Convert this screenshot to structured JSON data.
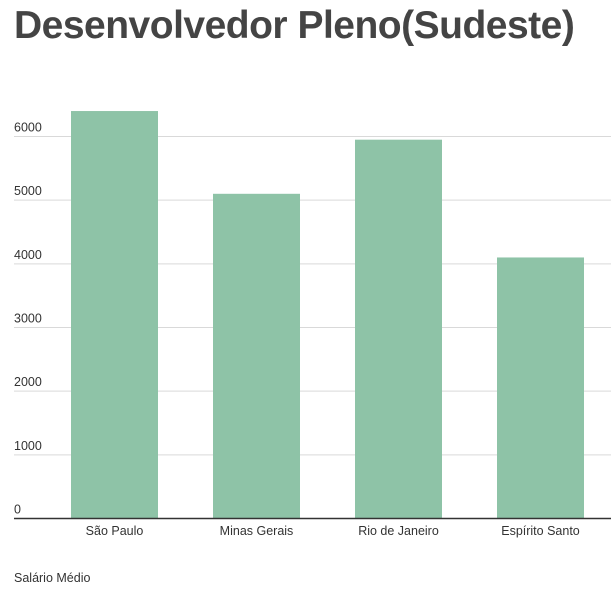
{
  "chart_data": {
    "type": "bar",
    "title": "Desenvolvedor Pleno(Sudeste)",
    "categories": [
      "São Paulo",
      "Minas Gerais",
      "Rio de Janeiro",
      "Espírito Santo"
    ],
    "series": [
      {
        "name": "Salário Médio",
        "values": [
          6400,
          5100,
          5950,
          4100
        ]
      }
    ],
    "yticks": [
      "0",
      "1000",
      "2000",
      "3000",
      "4000",
      "5000",
      "6000"
    ],
    "ylim": [
      0,
      7000
    ],
    "grid": true,
    "legend_position": "bottom-left",
    "colors": {
      "bar": "#8ec3a7",
      "grid": "#d9d9d9",
      "axis": "#333333",
      "title": "#444444",
      "text": "#333333"
    }
  }
}
